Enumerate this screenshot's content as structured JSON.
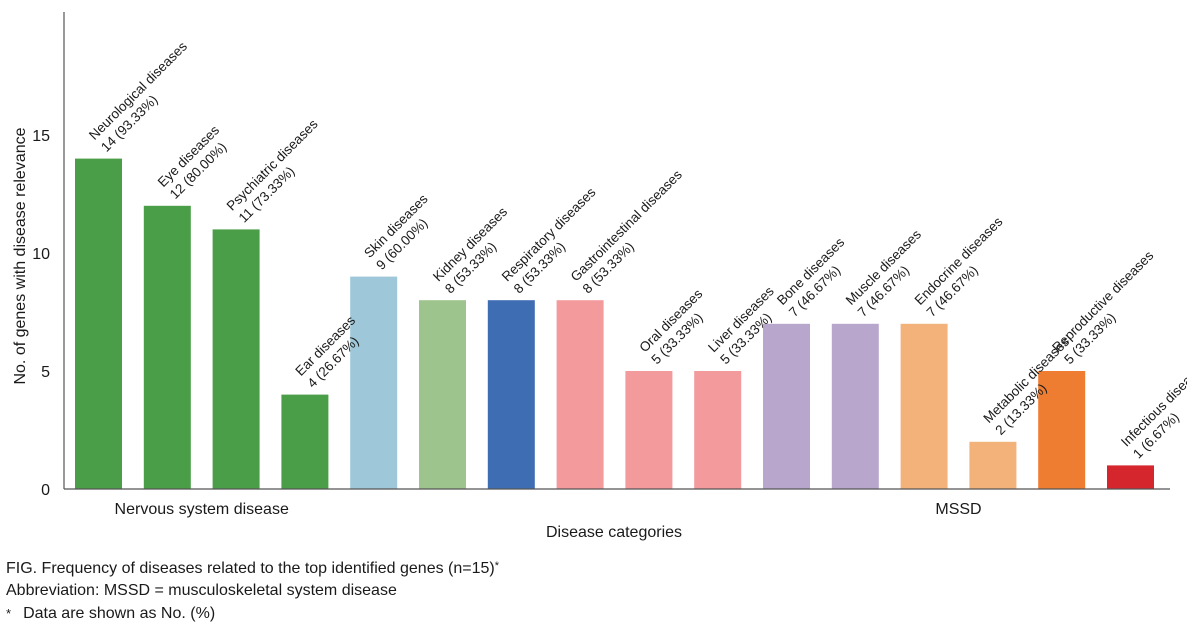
{
  "chart_data": {
    "type": "bar",
    "xlabel": "Disease categories",
    "ylabel": "No. of genes with disease relevance",
    "ylim": [
      0,
      18
    ],
    "yticks": [
      0,
      5,
      10,
      15
    ],
    "grid": false,
    "categories": [
      "Neurological diseases",
      "Eye diseases",
      "Psychiatric diseases",
      "Ear diseases",
      "Skin diseases",
      "Kidney diseases",
      "Respiratory diseases",
      "Gastrointestinal diseases",
      "Oral diseases",
      "Liver diseases",
      "Bone diseases",
      "Muscle diseases",
      "Endocrine diseases",
      "Metabolic diseases",
      "Reproductive diseases",
      "Infectious diseases"
    ],
    "values": [
      14,
      12,
      11,
      4,
      9,
      8,
      8,
      8,
      5,
      5,
      7,
      7,
      7,
      2,
      5,
      1
    ],
    "value_labels": [
      "14 (93.33%)",
      "12 (80.00%)",
      "11 (73.33%)",
      "4 (26.67%)",
      "9 (60.00%)",
      "8 (53.33%)",
      "8 (53.33%)",
      "8 (53.33%)",
      "5 (33.33%)",
      "5 (33.33%)",
      "7 (46.67%)",
      "7 (46.67%)",
      "7 (46.67%)",
      "2 (13.33%)",
      "5 (33.33%)",
      "1 (6.67%)"
    ],
    "colors": [
      "#4a9e47",
      "#4a9e47",
      "#4a9e47",
      "#4a9e47",
      "#9ec8d9",
      "#9dc48d",
      "#3f6db3",
      "#f39a9c",
      "#f39a9c",
      "#f39a9c",
      "#b9a6cc",
      "#b9a6cc",
      "#f3b27a",
      "#f3b27a",
      "#ef7d31",
      "#d4262c"
    ],
    "groups": [
      {
        "name": "Nervous system disease",
        "start": 0,
        "end": 3
      },
      {
        "name": "MSSD",
        "start": 10,
        "end": 15
      }
    ]
  },
  "caption": {
    "title": "FIG. Frequency of diseases related to the top identified genes (n=15)",
    "title_mark": "*",
    "abbreviation": "Abbreviation: MSSD = musculoskeletal system disease",
    "note_mark": "*",
    "note": "Data are shown as No. (%)"
  }
}
